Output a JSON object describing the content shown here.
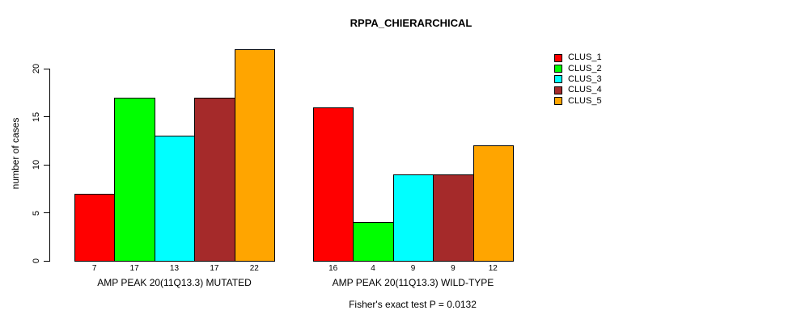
{
  "chart_data": {
    "type": "bar",
    "title": "RPPA_CHIERARCHICAL",
    "ylabel": "number of cases",
    "xlabel": "",
    "ylim": [
      0,
      22
    ],
    "axis_ticks": [
      0,
      5,
      10,
      15,
      20
    ],
    "grid": false,
    "legend_position": "right",
    "bar_value_labels": true,
    "categories": [
      "AMP PEAK 20(11Q13.3) MUTATED",
      "AMP PEAK 20(11Q13.3) WILD-TYPE"
    ],
    "series": [
      {
        "name": "CLUS_1",
        "color": "#FF0000",
        "values": [
          7,
          16
        ]
      },
      {
        "name": "CLUS_2",
        "color": "#00FF00",
        "values": [
          17,
          4
        ]
      },
      {
        "name": "CLUS_3",
        "color": "#00FFFF",
        "values": [
          13,
          9
        ]
      },
      {
        "name": "CLUS_4",
        "color": "#A52A2A",
        "values": [
          17,
          9
        ]
      },
      {
        "name": "CLUS_5",
        "color": "#FFA500",
        "values": [
          22,
          12
        ]
      }
    ],
    "annotation": "Fisher's exact test P = 0.0132"
  }
}
